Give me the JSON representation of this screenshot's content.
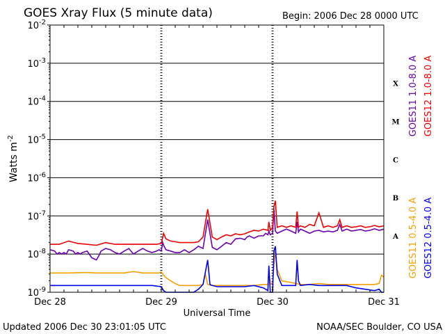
{
  "chart_data": {
    "type": "line",
    "title": "GOES Xray Flux (5 minute data)",
    "begin_text": "Begin:  2006 Dec 28 0000 UTC",
    "ylabel_text": "Watts m",
    "ylabel_exp": "-2",
    "xlabel": "Universal Time",
    "y_scale": "log",
    "ylim": [
      1e-09,
      0.01
    ],
    "xlim": [
      0,
      72
    ],
    "grid": "horizontal lines at each decade; dotted vertical day separators",
    "y_ticks": [
      {
        "base": "10",
        "exp": "-2",
        "value": 0.01
      },
      {
        "base": "10",
        "exp": "-3",
        "value": 0.001
      },
      {
        "base": "10",
        "exp": "-4",
        "value": 0.0001
      },
      {
        "base": "10",
        "exp": "-5",
        "value": 1e-05
      },
      {
        "base": "10",
        "exp": "-6",
        "value": 1e-06
      },
      {
        "base": "10",
        "exp": "-7",
        "value": 1e-07
      },
      {
        "base": "10",
        "exp": "-8",
        "value": 1e-08
      },
      {
        "base": "10",
        "exp": "-9",
        "value": 1e-09
      }
    ],
    "x_ticks": [
      {
        "label": "Dec 28",
        "hour": 0
      },
      {
        "label": "Dec 29",
        "hour": 24
      },
      {
        "label": "Dec 30",
        "hour": 48
      },
      {
        "label": "Dec 31",
        "hour": 72
      }
    ],
    "flare_classes": [
      {
        "label": "X",
        "value": 0.0003
      },
      {
        "label": "M",
        "value": 3e-05
      },
      {
        "label": "C",
        "value": 3e-06
      },
      {
        "label": "B",
        "value": 3e-07
      },
      {
        "label": "A",
        "value": 3e-08
      }
    ],
    "series": [
      {
        "name": "GOES11 1.0-8.0 A",
        "color": "#6a00b0",
        "x": [
          0,
          1,
          1.5,
          2,
          2.5,
          3,
          3.5,
          4,
          5,
          5.5,
          6,
          6.5,
          7,
          8,
          9,
          10,
          10.5,
          11,
          12,
          13,
          14,
          15,
          16,
          17,
          18,
          19,
          20,
          21,
          22,
          23,
          23.5,
          24,
          24.3,
          24.6,
          25,
          26,
          27,
          28,
          29,
          30,
          31,
          32,
          33,
          34,
          35,
          36,
          37,
          38,
          39,
          40,
          41,
          42,
          42.5,
          43,
          44,
          45,
          46,
          46.5,
          47,
          47.2,
          47.5,
          48,
          48.3,
          48.6,
          49,
          50,
          51,
          52,
          53,
          53.3,
          53.6,
          54,
          55,
          56,
          57,
          58,
          59,
          60,
          61,
          62,
          62.5,
          63,
          64,
          65,
          66,
          67,
          68,
          69,
          70,
          71,
          72
        ],
        "y": [
          1.3e-08,
          1.2e-08,
          1e-08,
          1.1e-08,
          1e-08,
          1.1e-08,
          1e-08,
          1.3e-08,
          1.2e-08,
          1e-08,
          1.1e-08,
          1e-08,
          1.1e-08,
          1.2e-08,
          8e-09,
          7e-09,
          9e-09,
          1.2e-08,
          1.4e-08,
          1.3e-08,
          1.1e-08,
          1e-08,
          1.2e-08,
          1.4e-08,
          1e-08,
          1.2e-08,
          1.4e-08,
          1.2e-08,
          1.1e-08,
          1.2e-08,
          1.3e-08,
          1.2e-08,
          2e-08,
          1.6e-08,
          1.3e-08,
          1.2e-08,
          1.1e-08,
          1.1e-08,
          1.3e-08,
          1.1e-08,
          1.3e-08,
          1.6e-08,
          1.4e-08,
          8e-08,
          1.5e-08,
          1.3e-08,
          1.6e-08,
          2e-08,
          1.8e-08,
          2.5e-08,
          2.6e-08,
          2.4e-08,
          2.8e-08,
          3e-08,
          2.6e-08,
          3e-08,
          3e-08,
          3.5e-08,
          3.2e-08,
          4e-08,
          3.2e-08,
          3.5e-08,
          1.5e-07,
          4e-08,
          3.5e-08,
          4e-08,
          4.5e-08,
          4e-08,
          3.5e-08,
          7e-08,
          3.8e-08,
          4.5e-08,
          4e-08,
          3.5e-08,
          4e-08,
          4.2e-08,
          3.8e-08,
          4e-08,
          3.8e-08,
          4.2e-08,
          6e-08,
          4e-08,
          4.5e-08,
          4e-08,
          4.2e-08,
          4.4e-08,
          4e-08,
          4.2e-08,
          4.6e-08,
          4.2e-08,
          4.5e-08
        ]
      },
      {
        "name": "GOES12 1.0-8.0 A",
        "color": "#ee0000",
        "x": [
          0,
          2,
          4,
          6,
          8,
          10,
          12,
          14,
          16,
          18,
          20,
          22,
          23,
          24,
          24.5,
          25,
          26,
          28,
          30,
          31,
          32,
          33,
          34,
          35,
          36,
          37,
          38,
          39,
          40,
          41,
          42,
          43,
          44,
          45,
          46,
          47,
          47.2,
          47.5,
          48,
          48.3,
          48.6,
          49,
          50,
          51,
          52,
          53,
          53.3,
          53.6,
          54,
          55,
          56,
          57,
          58,
          59,
          60,
          61,
          62,
          62.5,
          63,
          64,
          65,
          66,
          67,
          68,
          69,
          70,
          71,
          72
        ],
        "y": [
          1.8e-08,
          1.8e-08,
          2.2e-08,
          1.9e-08,
          1.8e-08,
          1.7e-08,
          2e-08,
          1.8e-08,
          1.8e-08,
          1.8e-08,
          1.8e-08,
          1.8e-08,
          1.8e-08,
          1.9e-08,
          3.5e-08,
          2.5e-08,
          2.2e-08,
          2e-08,
          2e-08,
          2e-08,
          2.1e-08,
          2.8e-08,
          1.5e-07,
          2.8e-08,
          2.4e-08,
          2.8e-08,
          3.2e-08,
          3e-08,
          3.4e-08,
          3.2e-08,
          3.4e-08,
          3.8e-08,
          4.2e-08,
          4e-08,
          4.5e-08,
          4.2e-08,
          7e-08,
          4.2e-08,
          5e-08,
          1.8e-07,
          2.5e-07,
          5e-08,
          5.5e-08,
          5e-08,
          5.5e-08,
          5e-08,
          1.3e-07,
          5e-08,
          5.5e-08,
          5e-08,
          6e-08,
          5.5e-08,
          1.2e-07,
          5e-08,
          5.5e-08,
          5e-08,
          5.5e-08,
          8e-08,
          5e-08,
          5.5e-08,
          5e-08,
          5.2e-08,
          5.5e-08,
          5e-08,
          5.2e-08,
          5.6e-08,
          5.2e-08,
          5.5e-08
        ]
      },
      {
        "name": "GOES11 0.5-4.0 A",
        "color": "#f5a000",
        "x": [
          0,
          4,
          8,
          10,
          12,
          14,
          16,
          18,
          20,
          22,
          23.5,
          24,
          24.5,
          25,
          26,
          27,
          28,
          30,
          32,
          33,
          33.5,
          34,
          35,
          36,
          38,
          40,
          42,
          44,
          46,
          47,
          47.2,
          47.5,
          48,
          48.3,
          48.6,
          49,
          50,
          52,
          54,
          56,
          58,
          60,
          62,
          64,
          66,
          68,
          70,
          71,
          71.5,
          72
        ],
        "y": [
          3.2e-09,
          3.2e-09,
          3.3e-09,
          3.2e-09,
          3.2e-09,
          3.2e-09,
          3.2e-09,
          3.5e-09,
          3.2e-09,
          3.2e-09,
          3.2e-09,
          3.4e-09,
          2.8e-09,
          2.4e-09,
          2e-09,
          1.7e-09,
          1.5e-09,
          1.5e-09,
          1.5e-09,
          1.6e-09,
          3e-09,
          1.6e-09,
          1.5e-09,
          1.5e-09,
          1.5e-09,
          1.5e-09,
          1.5e-09,
          1.5e-09,
          1.6e-09,
          1.6e-09,
          3.5e-09,
          1.6e-09,
          1.8e-09,
          5e-09,
          1.2e-08,
          4e-09,
          2e-09,
          1.8e-09,
          1.6e-09,
          1.6e-09,
          1.7e-09,
          1.6e-09,
          1.6e-09,
          1.6e-09,
          1.6e-09,
          1.6e-09,
          1.6e-09,
          1.7e-09,
          2.8e-09,
          2.5e-09
        ]
      },
      {
        "name": "GOES12 0.5-4.0 A",
        "color": "#0000ee",
        "x": [
          0,
          4,
          8,
          10,
          12,
          14,
          16,
          18,
          20,
          22,
          24,
          24.5,
          25,
          26,
          28,
          30,
          31,
          32,
          33,
          34,
          34.5,
          35,
          36,
          38,
          40,
          42,
          44,
          46,
          47,
          47.2,
          47.5,
          48,
          48.3,
          48.6,
          49,
          50,
          52,
          53,
          53.3,
          53.6,
          54,
          56,
          58,
          60,
          62,
          64,
          66,
          68,
          70,
          71,
          71.5,
          72
        ],
        "y": [
          1.5e-09,
          1.5e-09,
          1.5e-09,
          1.5e-09,
          1.5e-09,
          1.5e-09,
          1.5e-09,
          1.5e-09,
          1.5e-09,
          1.5e-09,
          1.4e-09,
          1.1e-09,
          1e-09,
          1e-09,
          1e-09,
          1e-09,
          1e-09,
          1.2e-09,
          1.6e-09,
          7e-09,
          1.6e-09,
          1.5e-09,
          1.4e-09,
          1.4e-09,
          1.4e-09,
          1.4e-09,
          1.5e-09,
          1.3e-09,
          1.1e-09,
          5e-09,
          1e-09,
          1e-09,
          1.2e-08,
          1.6e-08,
          3e-09,
          1.5e-09,
          1.5e-09,
          1.5e-09,
          7e-09,
          2e-09,
          1.5e-09,
          1.6e-09,
          1.5e-09,
          1.5e-09,
          1.5e-09,
          1.5e-09,
          1.3e-09,
          1.2e-09,
          1.1e-09,
          1.2e-09,
          1e-09,
          1e-09
        ]
      }
    ]
  },
  "footer": {
    "updated": "Updated 2006 Dec 30 23:01:05 UTC",
    "source": "NOAA/SEC Boulder, CO USA"
  }
}
